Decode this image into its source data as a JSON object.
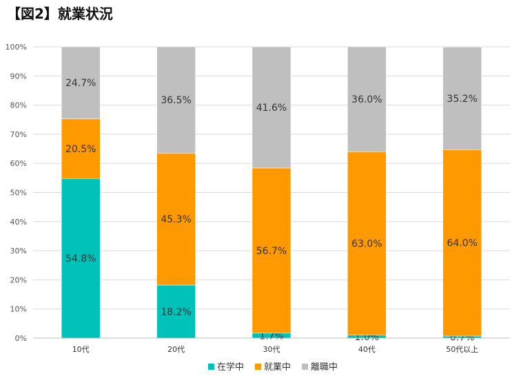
{
  "title": "【図2】就業状況",
  "colors": {
    "在学中": "#00c2b8",
    "就業中": "#ff9900",
    "離職中": "#bfbfbf",
    "grid": "#d9d9d9"
  },
  "chart_data": {
    "type": "bar",
    "stacked": true,
    "title": "【図2】就業状況",
    "xlabel": "",
    "ylabel": "",
    "ylim": [
      0,
      100
    ],
    "y_ticks": [
      "0%",
      "10%",
      "20%",
      "30%",
      "40%",
      "50%",
      "60%",
      "70%",
      "80%",
      "90%",
      "100%"
    ],
    "grid": true,
    "legend_position": "bottom",
    "categories": [
      "10代",
      "20代",
      "30代",
      "40代",
      "50代以上"
    ],
    "series": [
      {
        "name": "在学中",
        "values": [
          54.8,
          18.2,
          1.7,
          1.0,
          0.7
        ],
        "labels": [
          "54.8%",
          "18.2%",
          "1.7%",
          "1.0%",
          "0.7%"
        ]
      },
      {
        "name": "就業中",
        "values": [
          20.5,
          45.3,
          56.7,
          63.0,
          64.0
        ],
        "labels": [
          "20.5%",
          "45.3%",
          "56.7%",
          "63.0%",
          "64.0%"
        ]
      },
      {
        "name": "離職中",
        "values": [
          24.7,
          36.5,
          41.6,
          36.0,
          35.2
        ],
        "labels": [
          "24.7%",
          "36.5%",
          "41.6%",
          "36.0%",
          "35.2%"
        ]
      }
    ]
  }
}
